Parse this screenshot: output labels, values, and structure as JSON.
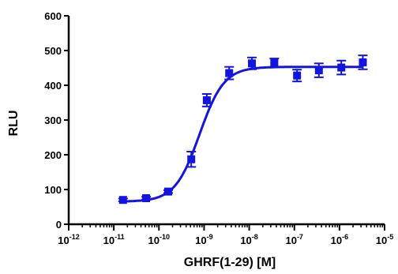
{
  "chart_data": {
    "type": "scatter",
    "title": "",
    "xlabel": "GHRF(1-29) [M]",
    "ylabel": "RLU",
    "x_scale": "log",
    "xlim": [
      1e-12,
      1e-05
    ],
    "ylim": [
      0,
      600
    ],
    "x_ticks": [
      {
        "base": "10",
        "exp": "-12",
        "value": 1e-12
      },
      {
        "base": "10",
        "exp": "-11",
        "value": 1e-11
      },
      {
        "base": "10",
        "exp": "-10",
        "value": 1e-10
      },
      {
        "base": "10",
        "exp": "-9",
        "value": 1e-09
      },
      {
        "base": "10",
        "exp": "-8",
        "value": 1e-08
      },
      {
        "base": "10",
        "exp": "-7",
        "value": 1e-07
      },
      {
        "base": "10",
        "exp": "-6",
        "value": 1e-06
      },
      {
        "base": "10",
        "exp": "-5",
        "value": 1e-05
      }
    ],
    "y_ticks": [
      "0",
      "100",
      "200",
      "300",
      "400",
      "500",
      "600"
    ],
    "y_tick_values": [
      0,
      100,
      200,
      300,
      400,
      500,
      600
    ],
    "grid": false,
    "color": "#1414e0",
    "series": [
      {
        "points": [
          {
            "x": 1.6e-11,
            "y": 70,
            "err": 4
          },
          {
            "x": 5.2e-11,
            "y": 75,
            "err": 4
          },
          {
            "x": 1.6e-10,
            "y": 94,
            "err": 4
          },
          {
            "x": 5.2e-10,
            "y": 187,
            "err": 22
          },
          {
            "x": 1.15e-09,
            "y": 357,
            "err": 18
          },
          {
            "x": 3.6e-09,
            "y": 435,
            "err": 18
          },
          {
            "x": 1.15e-08,
            "y": 463,
            "err": 17
          },
          {
            "x": 3.6e-08,
            "y": 465,
            "err": 12
          },
          {
            "x": 1.15e-07,
            "y": 428,
            "err": 17
          },
          {
            "x": 3.5e-07,
            "y": 443,
            "err": 20
          },
          {
            "x": 1.1e-06,
            "y": 451,
            "err": 20
          },
          {
            "x": 3.3e-06,
            "y": 466,
            "err": 20
          }
        ],
        "fit": {
          "model": "sigmoidal dose-response",
          "bottom": 65,
          "top": 453,
          "logEC50": -9.1,
          "hill": 1.6
        }
      }
    ]
  }
}
